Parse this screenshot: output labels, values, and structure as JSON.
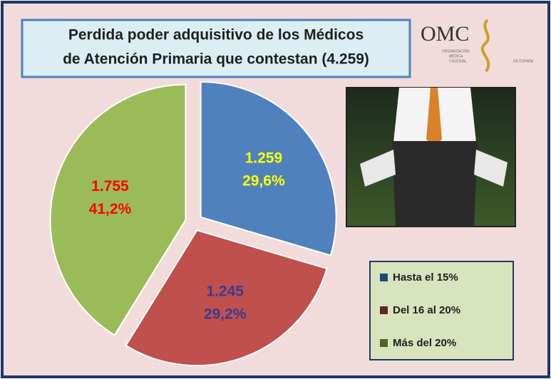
{
  "chart_data": {
    "type": "pie",
    "title": [
      "Perdida poder adquisitivo de los Médicos",
      "de Atención Primaria que contestan  (4.259)"
    ],
    "categories": [
      "Hasta el 15%",
      "Del 16 al 20%",
      "Más del 20%"
    ],
    "values": [
      1259,
      1245,
      1755
    ],
    "value_labels": [
      "1.259",
      "1.245",
      "1.755"
    ],
    "percentages": [
      29.6,
      29.2,
      41.2
    ],
    "percent_labels": [
      "29,6%",
      "29,2%",
      "41,2%"
    ],
    "colors": [
      "#4f81bd",
      "#c0504d",
      "#9bbb59"
    ],
    "label_colors": [
      "#ffff00",
      "#3b3b8c",
      "#ff0000"
    ],
    "legend_colors": [
      "#1f497d",
      "#632523",
      "#4f6228"
    ]
  },
  "logo": {
    "name": "OMC",
    "lines": [
      "ORGANIZACIÓN",
      "MÉDICA",
      "COLEGIAL",
      "DE ESPAÑA"
    ]
  }
}
